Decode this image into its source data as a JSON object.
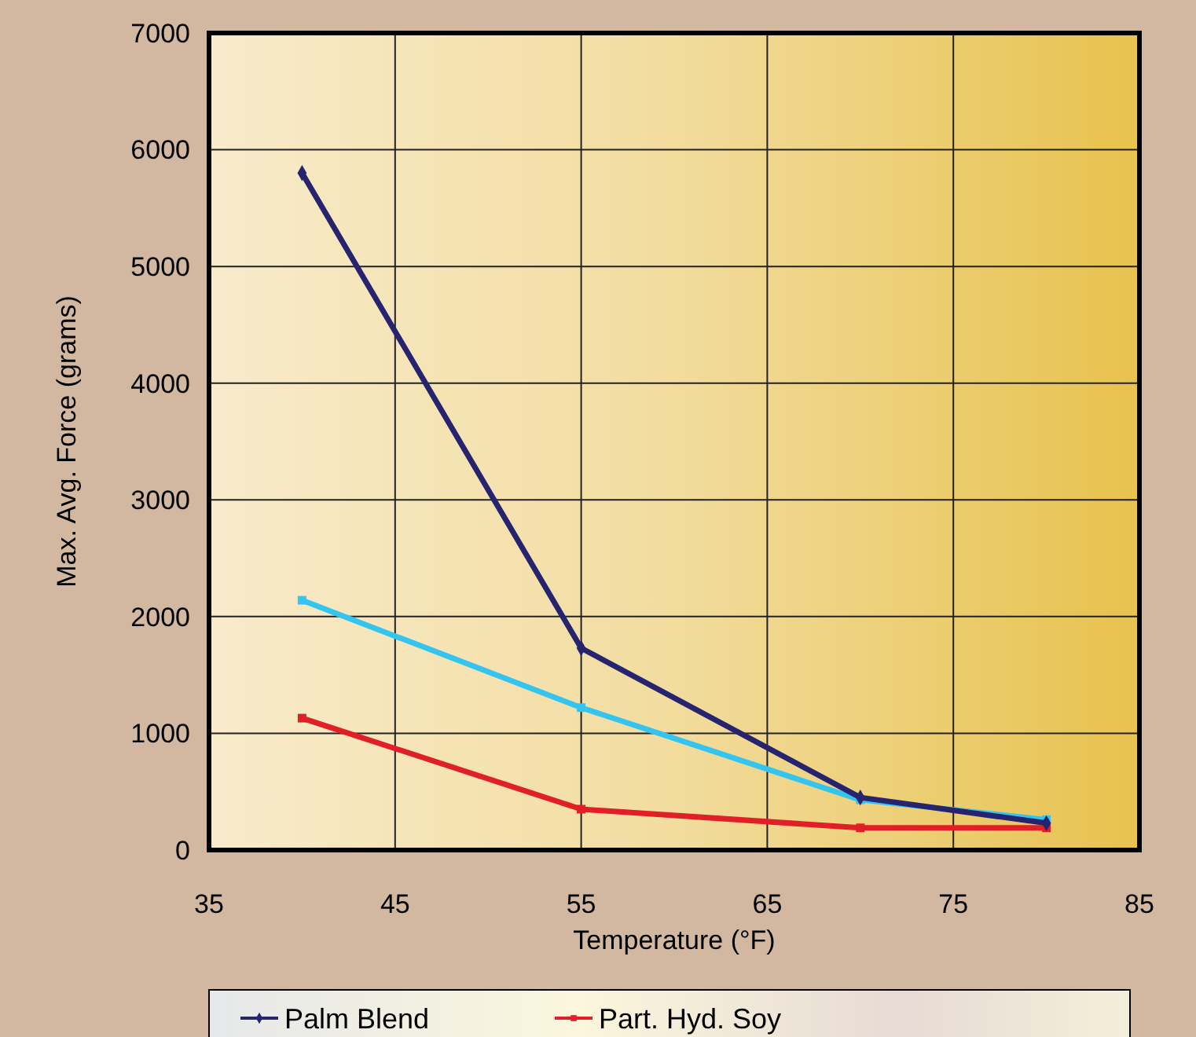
{
  "chart_data": {
    "type": "line",
    "xlabel": "Temperature (°F)",
    "ylabel": "Max. Avg. Force (grams)",
    "x": [
      40,
      55,
      70,
      80
    ],
    "series": [
      {
        "name": "Palm Blend",
        "color": "#26246e",
        "marker": "diamond",
        "values": [
          5800,
          1730,
          450,
          230
        ]
      },
      {
        "color": "#33c4f0",
        "marker": "square",
        "values": [
          2140,
          1220,
          430,
          260
        ]
      },
      {
        "name": "Part. Hyd. Soy",
        "color": "#e01f26",
        "marker": "square",
        "values": [
          1130,
          350,
          190,
          190
        ]
      }
    ],
    "xlim": [
      35,
      85
    ],
    "xticks": [
      35,
      45,
      55,
      65,
      75,
      85
    ],
    "ylim": [
      0,
      7000
    ],
    "yticks": [
      0,
      1000,
      2000,
      3000,
      4000,
      5000,
      6000,
      7000
    ],
    "grid": true,
    "legend": "bottom"
  }
}
